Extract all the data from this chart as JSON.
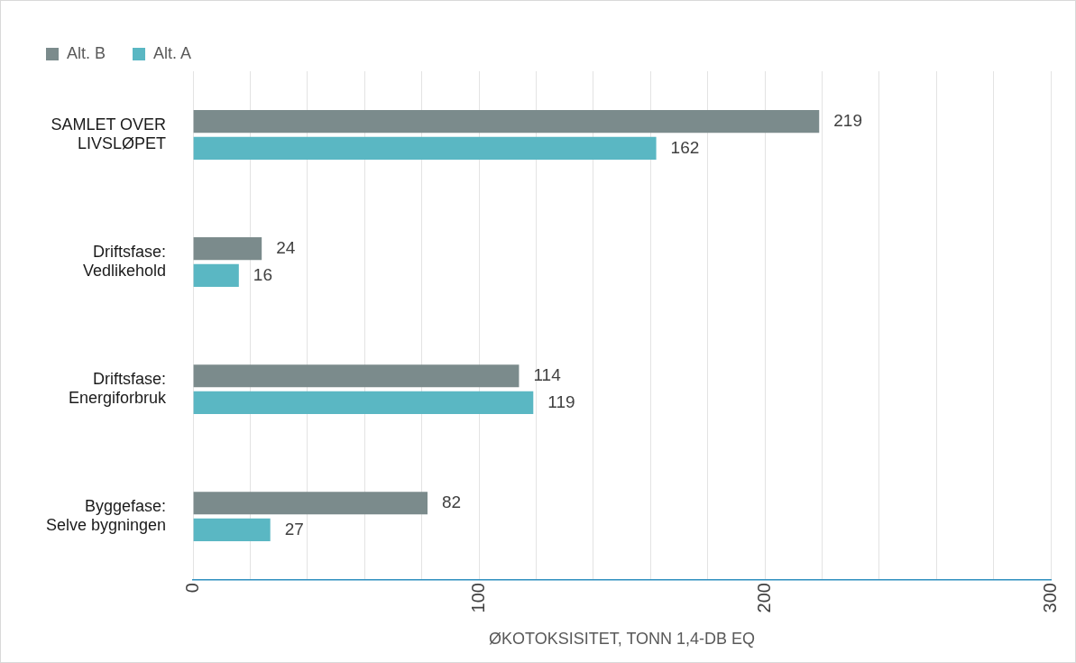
{
  "chart_data": {
    "type": "bar",
    "orientation": "horizontal",
    "xlabel": "ØKOTOKSISITET, TONN 1,4-DB EQ",
    "categories": [
      "SAMLET OVER LIVSLØPET",
      "Driftsfase: Vedlikehold",
      "Driftsfase: Energiforbruk",
      "Byggefase: Selve bygningen"
    ],
    "series": [
      {
        "name": "Alt. B",
        "color": "#7b8b8c",
        "values": [
          219,
          24,
          114,
          82
        ]
      },
      {
        "name": "Alt. A",
        "color": "#5ab7c3",
        "values": [
          162,
          16,
          119,
          27
        ]
      }
    ],
    "xlim": [
      0,
      300
    ],
    "xticks": [
      0,
      {
        "value": 20,
        "label": null
      },
      {
        "value": 40,
        "label": null
      },
      {
        "value": 60,
        "label": null
      },
      {
        "value": 80,
        "label": null
      },
      100,
      {
        "value": 120,
        "label": null
      },
      {
        "value": 140,
        "label": null
      },
      {
        "value": 160,
        "label": null
      },
      {
        "value": 180,
        "label": null
      },
      200,
      {
        "value": 220,
        "label": null
      },
      {
        "value": 240,
        "label": null
      },
      {
        "value": 260,
        "label": null
      },
      {
        "value": 280,
        "label": null
      },
      300
    ],
    "grid": "x",
    "legend": "top left",
    "data_labels": true
  }
}
